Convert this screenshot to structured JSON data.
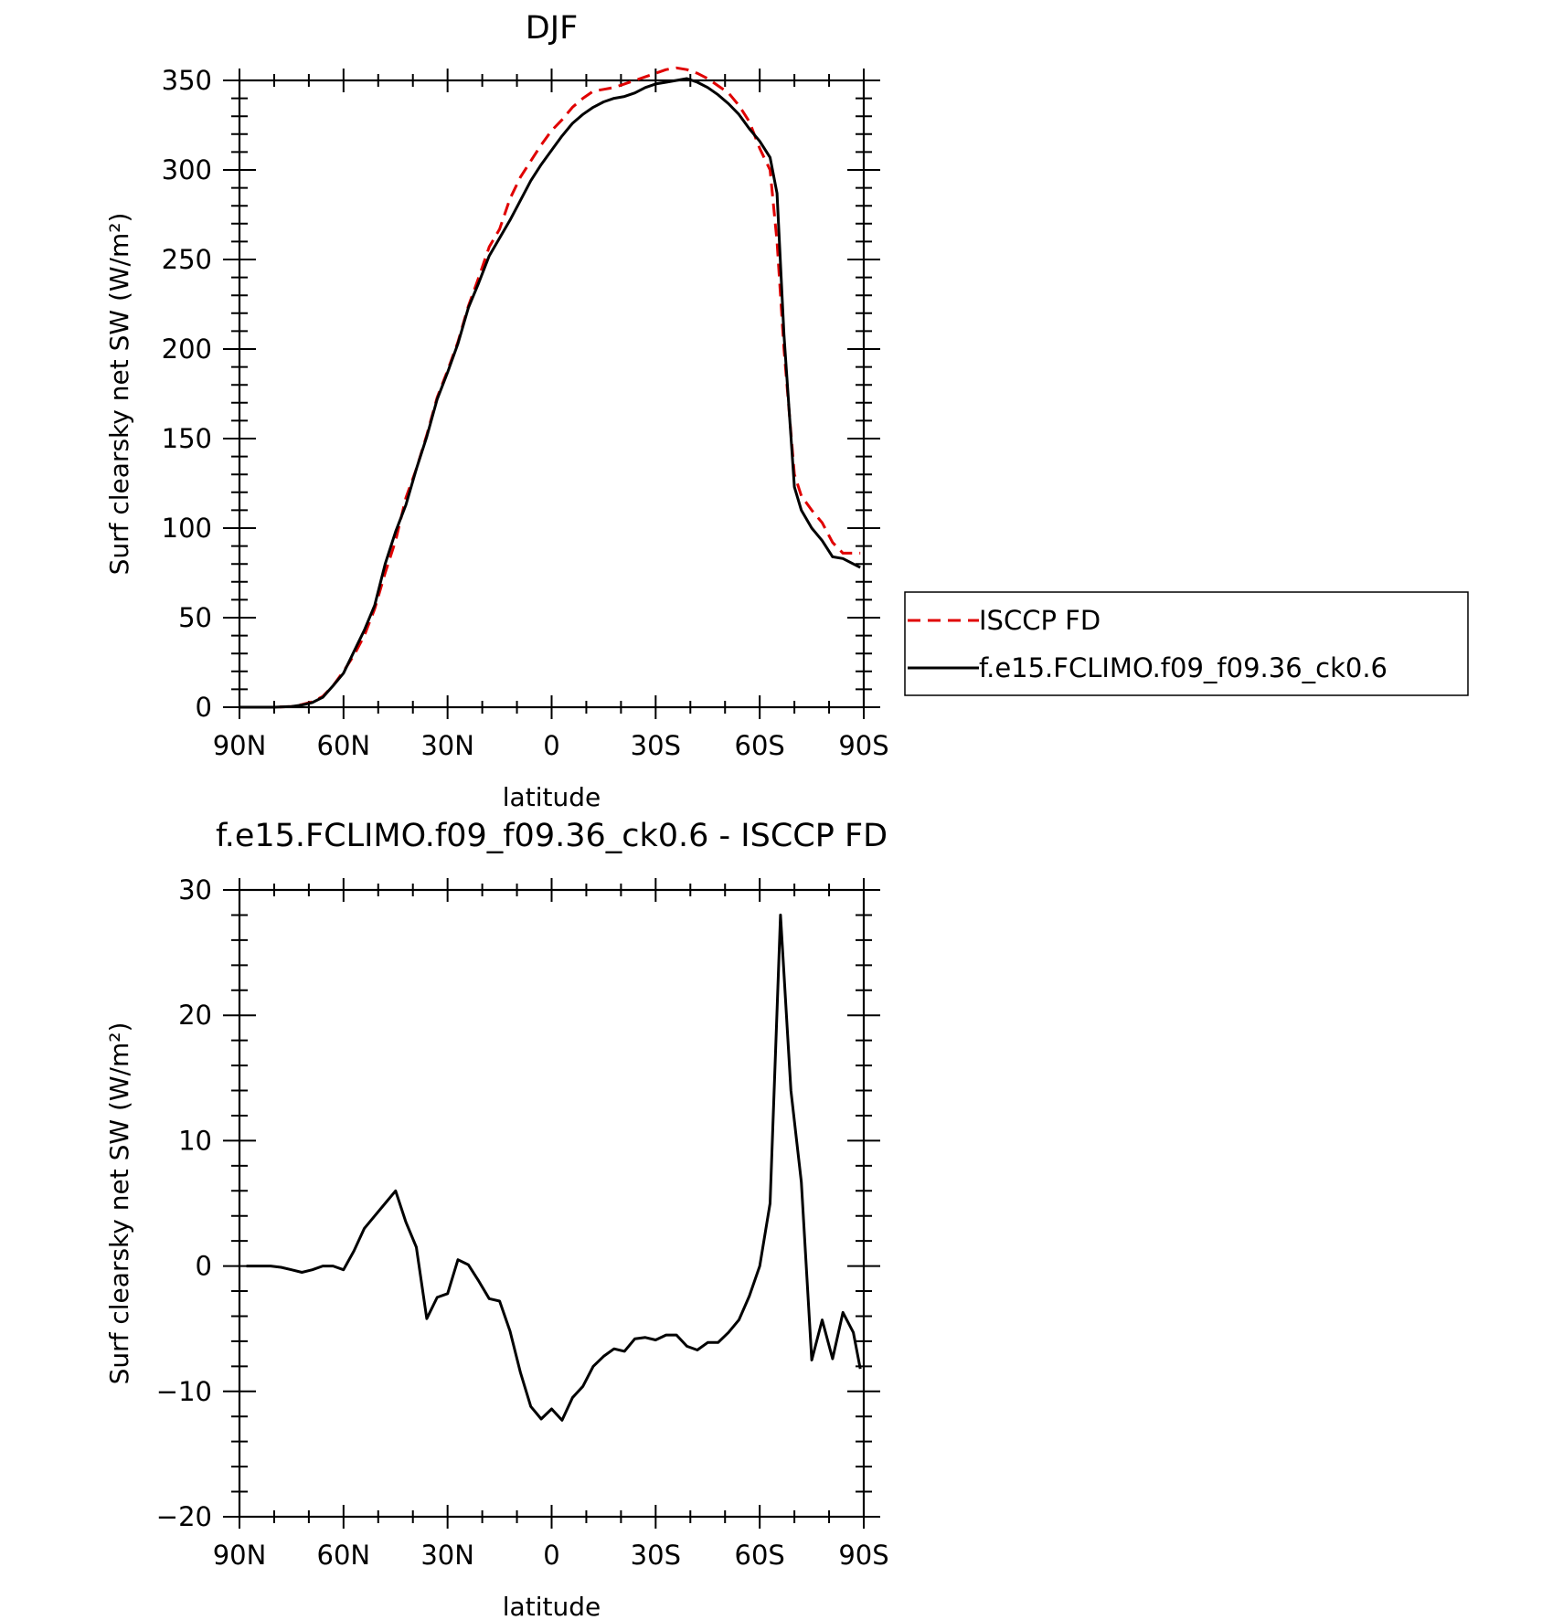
{
  "chart_data": [
    {
      "type": "line",
      "title": "DJF",
      "xlabel": "latitude",
      "ylabel": "Surf clearsky net SW (W/m²)",
      "xlim": [
        90,
        -90
      ],
      "ylim": [
        0,
        350
      ],
      "x_tick_labels": [
        "90N",
        "60N",
        "30N",
        "0",
        "30S",
        "60S",
        "90S"
      ],
      "x_tick_values": [
        90,
        60,
        30,
        0,
        -30,
        -60,
        -90
      ],
      "y_tick_labels": [
        "0",
        "50",
        "100",
        "150",
        "200",
        "250",
        "300",
        "350"
      ],
      "y_tick_values": [
        0,
        50,
        100,
        150,
        200,
        250,
        300,
        350
      ],
      "grid": false,
      "legend_placement": "right",
      "series": [
        {
          "name": "ISCCP FD",
          "color": "#e00000",
          "dash": "dashed",
          "x": [
            90,
            85,
            80,
            75,
            72,
            69,
            66,
            63,
            60,
            57,
            54,
            51,
            48,
            45,
            42,
            39,
            36,
            33,
            30,
            27,
            24,
            21,
            18,
            15,
            12,
            9,
            6,
            3,
            0,
            -3,
            -6,
            -9,
            -12,
            -15,
            -18,
            -21,
            -24,
            -27,
            -30,
            -33,
            -36,
            -39,
            -42,
            -45,
            -48,
            -51,
            -54,
            -57,
            -60,
            -63,
            -65,
            -67,
            -70,
            -72,
            -75,
            -78,
            -81,
            -84,
            -87,
            -89
          ],
          "y": [
            0,
            0,
            0,
            0.4,
            1.5,
            3,
            6,
            12,
            20,
            29,
            40,
            55,
            75,
            93,
            117,
            133,
            152,
            173,
            188,
            204,
            224,
            240,
            257,
            267,
            284,
            296,
            305,
            314,
            322,
            328,
            335,
            340,
            344,
            345,
            346,
            348,
            350,
            352,
            354,
            356,
            357,
            356,
            354,
            351,
            347,
            343,
            336,
            327,
            312,
            300,
            260,
            200,
            130,
            118,
            110,
            103,
            92,
            86,
            86,
            86
          ]
        },
        {
          "name": "f.e15.FCLIMO.f09_f09.36_ck0.6",
          "color": "#000000",
          "dash": "solid",
          "x": [
            90,
            85,
            80,
            75,
            72,
            69,
            66,
            63,
            60,
            57,
            54,
            51,
            48,
            45,
            42,
            39,
            36,
            33,
            30,
            27,
            24,
            21,
            18,
            15,
            12,
            9,
            6,
            3,
            0,
            -3,
            -6,
            -9,
            -12,
            -15,
            -18,
            -21,
            -24,
            -27,
            -30,
            -33,
            -36,
            -39,
            -42,
            -45,
            -48,
            -51,
            -54,
            -57,
            -60,
            -63,
            -65,
            -67,
            -70,
            -72,
            -75,
            -78,
            -81,
            -84,
            -87,
            -89
          ],
          "y": [
            0,
            0,
            0,
            0.4,
            1.2,
            2.6,
            5.5,
            12,
            19,
            31,
            43,
            57,
            80,
            98,
            113,
            133,
            151,
            172,
            187,
            203,
            223,
            237,
            252,
            262,
            272,
            283,
            294,
            303,
            311,
            319,
            326,
            331,
            335,
            338,
            340,
            341,
            343,
            346,
            348,
            349,
            350,
            351,
            349,
            346,
            342,
            337,
            331,
            323,
            316,
            307,
            287,
            208,
            123,
            110,
            100,
            93,
            84,
            83,
            80,
            78
          ]
        }
      ]
    },
    {
      "type": "line",
      "title": "f.e15.FCLIMO.f09_f09.36_ck0.6 - ISCCP FD",
      "xlabel": "latitude",
      "ylabel": "Surf clearsky net SW (W/m²)",
      "xlim": [
        90,
        -90
      ],
      "ylim": [
        -20,
        30
      ],
      "x_tick_labels": [
        "90N",
        "60N",
        "30N",
        "0",
        "30S",
        "60S",
        "90S"
      ],
      "x_tick_values": [
        90,
        60,
        30,
        0,
        -30,
        -60,
        -90
      ],
      "y_tick_labels": [
        "−20",
        "−10",
        "0",
        "10",
        "20",
        "30"
      ],
      "y_tick_values": [
        -20,
        -10,
        0,
        10,
        20,
        30
      ],
      "grid": false,
      "series": [
        {
          "color": "#000000",
          "dash": "solid",
          "x": [
            88,
            84,
            81,
            78,
            75,
            72,
            69,
            66,
            63,
            60,
            57,
            54,
            51,
            48,
            45,
            42,
            39,
            36,
            33,
            30,
            27,
            24,
            21,
            18,
            15,
            12,
            9,
            6,
            3,
            0,
            -3,
            -6,
            -9,
            -12,
            -15,
            -18,
            -21,
            -24,
            -27,
            -30,
            -33,
            -36,
            -39,
            -42,
            -45,
            -48,
            -51,
            -54,
            -57,
            -60,
            -63,
            -66,
            -69,
            -72,
            -75,
            -78,
            -81,
            -84,
            -87,
            -89
          ],
          "y": [
            0,
            0,
            0,
            -0.1,
            -0.3,
            -0.5,
            -0.3,
            0,
            0,
            -0.3,
            1.2,
            3.0,
            4.0,
            5.0,
            6.0,
            3.5,
            1.5,
            -4.2,
            -2.5,
            -2.2,
            0.5,
            0.1,
            -1.2,
            -2.6,
            -2.8,
            -5.2,
            -8.5,
            -11.2,
            -12.2,
            -11.4,
            -12.3,
            -10.5,
            -9.6,
            -8.0,
            -7.2,
            -6.6,
            -6.8,
            -5.8,
            -5.7,
            -5.9,
            -5.5,
            -5.5,
            -6.4,
            -6.7,
            -6.1,
            -6.1,
            -5.3,
            -4.3,
            -2.4,
            0,
            5.0,
            28,
            14,
            6.7,
            -7.5,
            -4.3,
            -7.4,
            -3.7,
            -5.3,
            -8.2
          ]
        }
      ]
    }
  ],
  "legend": {
    "items": [
      {
        "label": "ISCCP FD",
        "color": "#e00000",
        "dash": "dashed"
      },
      {
        "label": "f.e15.FCLIMO.f09_f09.36_ck0.6",
        "color": "#000000",
        "dash": "solid"
      }
    ]
  }
}
